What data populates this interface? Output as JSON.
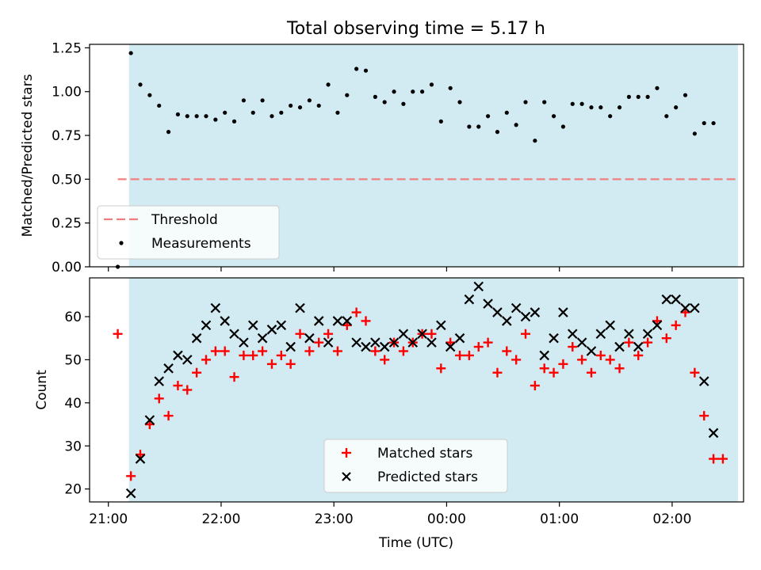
{
  "title": "Total observing time = 5.17 h",
  "colors": {
    "shade": "#add8e6",
    "threshold": "#f08080",
    "matched": "#ff0000",
    "predicted": "#000000",
    "measurements": "#000000"
  },
  "chart_data": [
    {
      "type": "scatter",
      "title": "Total observing time = 5.17 h",
      "xlabel": "",
      "ylabel": "Matched/Predicted stars",
      "ylim": [
        0,
        1.27
      ],
      "yticks": [
        "0.00",
        "0.25",
        "0.50",
        "0.75",
        "1.00",
        "1.25"
      ],
      "ytick_values": [
        0,
        0.25,
        0.5,
        0.75,
        1.0,
        1.25
      ],
      "xlim": [
        "20:50",
        "02:38"
      ],
      "shaded_span": [
        "21:11",
        "02:35"
      ],
      "legend_position": "lower-left",
      "threshold": {
        "name": "Threshold",
        "value": 0.5,
        "x": [
          "21:05",
          "02:35"
        ]
      },
      "series": [
        {
          "name": "Measurements",
          "x": [
            "21:05",
            "21:12",
            "21:17",
            "21:22",
            "21:27",
            "21:32",
            "21:37",
            "21:42",
            "21:47",
            "21:52",
            "21:57",
            "22:02",
            "22:07",
            "22:12",
            "22:17",
            "22:22",
            "22:27",
            "22:32",
            "22:37",
            "22:42",
            "22:47",
            "22:52",
            "22:57",
            "23:02",
            "23:07",
            "23:12",
            "23:17",
            "23:22",
            "23:27",
            "23:32",
            "23:37",
            "23:42",
            "23:47",
            "23:52",
            "23:57",
            "00:02",
            "00:07",
            "00:12",
            "00:17",
            "00:22",
            "00:27",
            "00:32",
            "00:37",
            "00:42",
            "00:47",
            "00:52",
            "00:57",
            "01:02",
            "01:07",
            "01:12",
            "01:17",
            "01:22",
            "01:27",
            "01:32",
            "01:37",
            "01:42",
            "01:47",
            "01:52",
            "01:57",
            "02:02",
            "02:07",
            "02:12",
            "02:17",
            "02:22"
          ],
          "y": [
            0.0,
            1.22,
            1.04,
            0.98,
            0.92,
            0.77,
            0.87,
            0.86,
            0.86,
            0.86,
            0.84,
            0.88,
            0.83,
            0.95,
            0.88,
            0.95,
            0.86,
            0.88,
            0.92,
            0.91,
            0.95,
            0.92,
            1.04,
            0.88,
            0.98,
            1.13,
            1.12,
            0.97,
            0.94,
            1.0,
            0.93,
            1.0,
            1.0,
            1.04,
            0.83,
            1.02,
            0.94,
            0.8,
            0.8,
            0.86,
            0.77,
            0.88,
            0.81,
            0.94,
            0.72,
            0.94,
            0.86,
            0.8,
            0.93,
            0.93,
            0.91,
            0.91,
            0.86,
            0.91,
            0.97,
            0.97,
            0.97,
            1.02,
            0.86,
            0.91,
            0.98,
            0.76,
            0.82,
            0.82
          ]
        }
      ]
    },
    {
      "type": "scatter",
      "xlabel": "Time (UTC)",
      "ylabel": "Count",
      "ylim": [
        17,
        69
      ],
      "yticks": [
        "20",
        "30",
        "40",
        "50",
        "60"
      ],
      "ytick_values": [
        20,
        30,
        40,
        50,
        60
      ],
      "xlim": [
        "20:50",
        "02:38"
      ],
      "xticks": [
        "21:00",
        "22:00",
        "23:00",
        "00:00",
        "01:00",
        "02:00"
      ],
      "shaded_span": [
        "21:11",
        "02:35"
      ],
      "legend_position": "lower-center",
      "series": [
        {
          "name": "Matched stars",
          "x": [
            "21:05",
            "21:12",
            "21:17",
            "21:22",
            "21:27",
            "21:32",
            "21:37",
            "21:42",
            "21:47",
            "21:52",
            "21:57",
            "22:02",
            "22:07",
            "22:12",
            "22:17",
            "22:22",
            "22:27",
            "22:32",
            "22:37",
            "22:42",
            "22:47",
            "22:52",
            "22:57",
            "23:02",
            "23:07",
            "23:12",
            "23:17",
            "23:22",
            "23:27",
            "23:32",
            "23:37",
            "23:42",
            "23:47",
            "23:52",
            "23:57",
            "00:02",
            "00:07",
            "00:12",
            "00:17",
            "00:22",
            "00:27",
            "00:32",
            "00:37",
            "00:42",
            "00:47",
            "00:52",
            "00:57",
            "01:02",
            "01:07",
            "01:12",
            "01:17",
            "01:22",
            "01:27",
            "01:32",
            "01:37",
            "01:42",
            "01:47",
            "01:52",
            "01:57",
            "02:02",
            "02:07",
            "02:12",
            "02:17",
            "02:22",
            "02:27"
          ],
          "y": [
            56,
            23,
            28,
            35,
            41,
            37,
            44,
            43,
            47,
            50,
            52,
            52,
            46,
            51,
            51,
            52,
            49,
            51,
            49,
            56,
            52,
            54,
            56,
            52,
            58,
            61,
            59,
            52,
            50,
            54,
            52,
            54,
            56,
            56,
            48,
            54,
            51,
            51,
            53,
            54,
            47,
            52,
            50,
            56,
            44,
            48,
            47,
            49,
            53,
            50,
            47,
            51,
            50,
            48,
            54,
            51,
            54,
            59,
            55,
            58,
            61,
            47,
            37,
            27,
            27
          ]
        },
        {
          "name": "Predicted stars",
          "x": [
            "21:12",
            "21:17",
            "21:22",
            "21:27",
            "21:32",
            "21:37",
            "21:42",
            "21:47",
            "21:52",
            "21:57",
            "22:02",
            "22:07",
            "22:12",
            "22:17",
            "22:22",
            "22:27",
            "22:32",
            "22:37",
            "22:42",
            "22:47",
            "22:52",
            "22:57",
            "23:02",
            "23:07",
            "23:12",
            "23:17",
            "23:22",
            "23:27",
            "23:32",
            "23:37",
            "23:42",
            "23:47",
            "23:52",
            "23:57",
            "00:02",
            "00:07",
            "00:12",
            "00:17",
            "00:22",
            "00:27",
            "00:32",
            "00:37",
            "00:42",
            "00:47",
            "00:52",
            "00:57",
            "01:02",
            "01:07",
            "01:12",
            "01:17",
            "01:22",
            "01:27",
            "01:32",
            "01:37",
            "01:42",
            "01:47",
            "01:52",
            "01:57",
            "02:02",
            "02:07",
            "02:12",
            "02:17",
            "02:22"
          ],
          "y": [
            19,
            27,
            36,
            45,
            48,
            51,
            50,
            55,
            58,
            62,
            59,
            56,
            54,
            58,
            55,
            57,
            58,
            53,
            62,
            55,
            59,
            54,
            59,
            59,
            54,
            53,
            54,
            53,
            54,
            56,
            54,
            56,
            54,
            58,
            53,
            55,
            64,
            67,
            63,
            61,
            59,
            62,
            60,
            61,
            51,
            55,
            61,
            56,
            54,
            52,
            56,
            58,
            53,
            56,
            53,
            56,
            58,
            64,
            64,
            62,
            62,
            45,
            33
          ]
        }
      ]
    }
  ]
}
